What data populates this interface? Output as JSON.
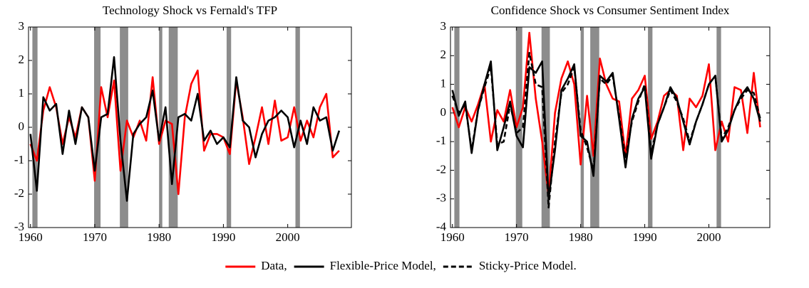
{
  "chart_data": [
    {
      "type": "line",
      "title": "Technology Shock vs Fernald's TFP",
      "x": [
        1960,
        1961,
        1962,
        1963,
        1964,
        1965,
        1966,
        1967,
        1968,
        1969,
        1970,
        1971,
        1972,
        1973,
        1974,
        1975,
        1976,
        1977,
        1978,
        1979,
        1980,
        1981,
        1982,
        1983,
        1984,
        1985,
        1986,
        1987,
        1988,
        1989,
        1990,
        1991,
        1992,
        1993,
        1994,
        1995,
        1996,
        1997,
        1998,
        1999,
        2000,
        2001,
        2002,
        2003,
        2004,
        2005,
        2006,
        2007,
        2008
      ],
      "series": [
        {
          "color": "#ff0000",
          "dash": false,
          "values": [
            -0.5,
            -1.0,
            0.5,
            1.2,
            0.6,
            -0.5,
            0.3,
            -0.3,
            0.6,
            0.3,
            -1.6,
            1.2,
            0.3,
            1.4,
            -1.3,
            0.2,
            -0.3,
            0.2,
            -0.4,
            1.5,
            -0.5,
            0.2,
            0.1,
            -2.0,
            0.3,
            1.3,
            1.7,
            -0.7,
            -0.2,
            -0.2,
            -0.3,
            -0.8,
            1.4,
            0.3,
            -1.1,
            -0.3,
            0.6,
            -0.5,
            0.8,
            -0.4,
            -0.3,
            0.6,
            -0.4,
            0.2,
            -0.3,
            0.6,
            1.0,
            -0.9,
            -0.7
          ]
        },
        {
          "color": "#000000",
          "dash": false,
          "values": [
            -0.2,
            -1.9,
            0.9,
            0.5,
            0.7,
            -0.8,
            0.5,
            -0.5,
            0.6,
            0.3,
            -1.3,
            0.3,
            0.4,
            2.1,
            -0.4,
            -2.2,
            -0.2,
            0.1,
            0.3,
            1.1,
            -0.4,
            0.6,
            -1.7,
            0.3,
            0.4,
            0.2,
            1.0,
            -0.4,
            -0.1,
            -0.5,
            -0.3,
            -0.6,
            1.5,
            0.2,
            0.0,
            -0.9,
            -0.2,
            0.2,
            0.3,
            0.5,
            0.3,
            -0.6,
            0.2,
            -0.5,
            0.6,
            0.2,
            0.3,
            -0.7,
            -0.1
          ]
        }
      ],
      "shaded": [
        [
          1960.3,
          1961.1
        ],
        [
          1969.9,
          1970.9
        ],
        [
          1973.9,
          1975.2
        ],
        [
          1980.0,
          1980.5
        ],
        [
          1981.5,
          1982.9
        ],
        [
          1990.5,
          1991.2
        ],
        [
          2001.2,
          2001.9
        ]
      ],
      "shade_color": "#8c8c8c",
      "xlim": [
        1959.7,
        2009.9
      ],
      "xticks": [
        1960,
        1970,
        1980,
        1990,
        2000
      ],
      "ylim": [
        -3,
        3
      ],
      "yticks": [
        -3,
        -2,
        -1,
        0,
        1,
        2,
        3
      ],
      "grid": false
    },
    {
      "type": "line",
      "title": "Confidence Shock vs Consumer Sentiment Index",
      "x": [
        1960,
        1961,
        1962,
        1963,
        1964,
        1965,
        1966,
        1967,
        1968,
        1969,
        1970,
        1971,
        1972,
        1973,
        1974,
        1975,
        1976,
        1977,
        1978,
        1979,
        1980,
        1981,
        1982,
        1983,
        1984,
        1985,
        1986,
        1987,
        1988,
        1989,
        1990,
        1991,
        1992,
        1993,
        1994,
        1995,
        1996,
        1997,
        1998,
        1999,
        2000,
        2001,
        2002,
        2003,
        2004,
        2005,
        2006,
        2007,
        2008
      ],
      "series": [
        {
          "name": "Data,",
          "color": "#ff0000",
          "dash": false,
          "values": [
            0.2,
            -0.5,
            0.2,
            -0.3,
            0.3,
            1.0,
            -1.0,
            0.1,
            -0.3,
            0.8,
            -0.5,
            0.2,
            2.8,
            0.5,
            -1.0,
            -2.9,
            0.0,
            1.2,
            1.8,
            1.0,
            -1.8,
            0.6,
            -1.5,
            1.9,
            1.0,
            0.5,
            0.4,
            -1.5,
            0.5,
            0.8,
            1.3,
            -0.9,
            -0.3,
            0.6,
            0.8,
            0.6,
            -1.3,
            0.5,
            0.2,
            0.6,
            1.7,
            -1.3,
            -0.3,
            -1.0,
            0.9,
            0.8,
            -0.7,
            1.4,
            -0.5
          ]
        },
        {
          "name": "Flexible-Price Model,",
          "color": "#000000",
          "dash": false,
          "values": [
            0.8,
            -0.1,
            0.4,
            -1.4,
            0.1,
            1.0,
            1.8,
            -1.3,
            -0.5,
            0.4,
            -0.8,
            -1.2,
            1.6,
            1.4,
            1.8,
            -3.0,
            -1.3,
            0.8,
            1.2,
            1.7,
            -0.8,
            -1.0,
            -2.2,
            1.3,
            1.1,
            1.4,
            -0.2,
            -1.9,
            -0.2,
            0.5,
            0.9,
            -1.6,
            -0.4,
            0.2,
            0.9,
            0.5,
            -0.3,
            -1.1,
            -0.3,
            0.3,
            1.0,
            1.3,
            -1.0,
            -0.6,
            0.1,
            0.6,
            0.9,
            0.5,
            -0.3
          ]
        },
        {
          "name": "Sticky-Price Model.",
          "color": "#000000",
          "dash": true,
          "values": [
            0.6,
            0.0,
            0.3,
            -1.3,
            0.1,
            0.9,
            1.6,
            -1.1,
            -1.0,
            0.3,
            -0.7,
            -0.5,
            2.1,
            1.0,
            0.9,
            -3.3,
            -1.0,
            0.7,
            1.0,
            1.6,
            -0.6,
            -1.2,
            -2.0,
            1.2,
            1.0,
            1.3,
            -0.1,
            -1.6,
            -0.3,
            0.4,
            1.0,
            -1.4,
            -0.4,
            0.2,
            0.8,
            0.4,
            -0.2,
            -1.0,
            -0.3,
            0.3,
            1.0,
            1.3,
            -0.9,
            -0.5,
            0.1,
            0.5,
            0.8,
            0.7,
            -0.2
          ]
        }
      ],
      "shaded": [
        [
          1960.3,
          1961.1
        ],
        [
          1969.9,
          1970.9
        ],
        [
          1973.9,
          1975.2
        ],
        [
          1980.0,
          1980.5
        ],
        [
          1981.5,
          1982.9
        ],
        [
          1990.5,
          1991.2
        ],
        [
          2001.2,
          2001.9
        ]
      ],
      "shade_color": "#8c8c8c",
      "xlim": [
        1959.7,
        2009.5
      ],
      "xticks": [
        1960,
        1970,
        1980,
        1990,
        2000
      ],
      "ylim": [
        -4,
        3
      ],
      "yticks": [
        -4,
        -3,
        -2,
        -1,
        0,
        1,
        2,
        3
      ],
      "grid": false,
      "legend": "bottom-center"
    }
  ]
}
